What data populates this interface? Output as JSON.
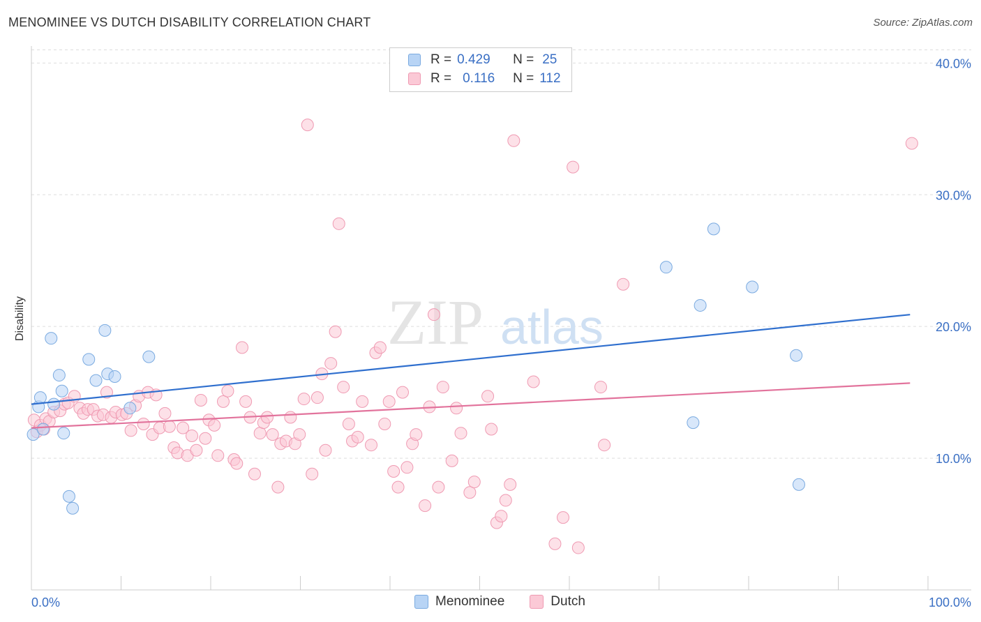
{
  "title": "MENOMINEE VS DUTCH DISABILITY CORRELATION CHART",
  "source": "Source: ZipAtlas.com",
  "watermark": {
    "zip": "ZIP",
    "atlas": "atlas"
  },
  "legend": {
    "rows": [
      {
        "r_label": "R =",
        "r_value": "0.429",
        "n_label": "N =",
        "n_value": "25",
        "color": "#b8d4f5",
        "border": "#7aaae0"
      },
      {
        "r_label": "R =",
        "r_value": "0.116",
        "n_label": "N =",
        "n_value": "112",
        "color": "#fbc9d6",
        "border": "#ef9ab2"
      }
    ]
  },
  "bottom_legend": [
    {
      "label": "Menominee",
      "color": "#b8d4f5",
      "border": "#7aaae0"
    },
    {
      "label": "Dutch",
      "color": "#fbc9d6",
      "border": "#ef9ab2"
    }
  ],
  "chart_data": {
    "type": "scatter",
    "title": "MENOMINEE VS DUTCH DISABILITY CORRELATION CHART",
    "xlabel": "",
    "ylabel": "Disability",
    "xlim": [
      0,
      100
    ],
    "ylim": [
      0,
      41.5
    ],
    "x_tick_labels": [
      "0.0%",
      "100.0%"
    ],
    "y_ticks": [
      10,
      20,
      30,
      40
    ],
    "y_tick_labels": [
      "10.0%",
      "20.0%",
      "30.0%",
      "40.0%"
    ],
    "grid": true,
    "legend_position": "top-center",
    "series": [
      {
        "name": "Menominee",
        "color": "#b8d4f5",
        "stroke": "#7aaae0",
        "line_color": "#2f6fce",
        "trend": [
          [
            0,
            14.1
          ],
          [
            98,
            20.9
          ]
        ],
        "points": [
          [
            0.2,
            11.8
          ],
          [
            0.8,
            13.9
          ],
          [
            1.0,
            14.6
          ],
          [
            1.3,
            12.2
          ],
          [
            2.2,
            19.1
          ],
          [
            2.5,
            14.1
          ],
          [
            3.1,
            16.3
          ],
          [
            3.4,
            15.1
          ],
          [
            3.6,
            11.9
          ],
          [
            4.2,
            7.1
          ],
          [
            4.6,
            6.2
          ],
          [
            6.4,
            17.5
          ],
          [
            7.2,
            15.9
          ],
          [
            8.2,
            19.7
          ],
          [
            8.5,
            16.4
          ],
          [
            9.3,
            16.2
          ],
          [
            11.0,
            13.8
          ],
          [
            13.1,
            17.7
          ],
          [
            70.8,
            24.5
          ],
          [
            74.6,
            21.6
          ],
          [
            76.1,
            27.4
          ],
          [
            73.8,
            12.7
          ],
          [
            80.4,
            23.0
          ],
          [
            85.3,
            17.8
          ],
          [
            85.6,
            8.0
          ]
        ]
      },
      {
        "name": "Dutch",
        "color": "#fbc9d6",
        "stroke": "#ef9ab2",
        "line_color": "#e2739c",
        "trend": [
          [
            0,
            12.3
          ],
          [
            98,
            15.7
          ]
        ],
        "points": [
          [
            0.3,
            12.9
          ],
          [
            0.6,
            12.0
          ],
          [
            1.0,
            12.5
          ],
          [
            1.4,
            12.2
          ],
          [
            1.6,
            13.0
          ],
          [
            2.0,
            12.8
          ],
          [
            2.5,
            13.5
          ],
          [
            3.2,
            13.6
          ],
          [
            3.7,
            14.1
          ],
          [
            4.1,
            14.2
          ],
          [
            4.8,
            14.7
          ],
          [
            5.4,
            13.8
          ],
          [
            5.8,
            13.4
          ],
          [
            6.3,
            13.7
          ],
          [
            6.9,
            13.7
          ],
          [
            7.4,
            13.2
          ],
          [
            8.0,
            13.3
          ],
          [
            8.4,
            15.0
          ],
          [
            8.9,
            13.1
          ],
          [
            9.4,
            13.5
          ],
          [
            10.1,
            13.3
          ],
          [
            10.6,
            13.4
          ],
          [
            11.1,
            12.1
          ],
          [
            11.6,
            14.0
          ],
          [
            12.0,
            14.7
          ],
          [
            12.5,
            12.6
          ],
          [
            13.0,
            15.0
          ],
          [
            13.5,
            11.8
          ],
          [
            13.9,
            14.8
          ],
          [
            14.3,
            12.3
          ],
          [
            14.9,
            13.4
          ],
          [
            15.4,
            12.4
          ],
          [
            15.9,
            10.8
          ],
          [
            16.3,
            10.4
          ],
          [
            16.9,
            12.3
          ],
          [
            17.4,
            10.2
          ],
          [
            17.9,
            11.7
          ],
          [
            18.4,
            10.6
          ],
          [
            18.9,
            14.4
          ],
          [
            19.4,
            11.5
          ],
          [
            19.8,
            12.9
          ],
          [
            20.4,
            12.5
          ],
          [
            20.8,
            10.2
          ],
          [
            21.4,
            14.3
          ],
          [
            21.9,
            15.1
          ],
          [
            22.6,
            9.9
          ],
          [
            22.9,
            9.6
          ],
          [
            23.5,
            18.4
          ],
          [
            23.9,
            14.3
          ],
          [
            24.4,
            13.1
          ],
          [
            24.9,
            8.8
          ],
          [
            25.5,
            11.9
          ],
          [
            25.9,
            12.7
          ],
          [
            26.3,
            13.1
          ],
          [
            26.9,
            11.8
          ],
          [
            27.5,
            7.8
          ],
          [
            27.8,
            11.1
          ],
          [
            28.4,
            11.3
          ],
          [
            28.9,
            13.1
          ],
          [
            29.4,
            11.1
          ],
          [
            29.9,
            11.8
          ],
          [
            30.4,
            14.5
          ],
          [
            30.8,
            35.3
          ],
          [
            31.3,
            8.8
          ],
          [
            31.9,
            14.6
          ],
          [
            32.4,
            16.4
          ],
          [
            32.8,
            10.6
          ],
          [
            33.4,
            17.2
          ],
          [
            33.9,
            19.6
          ],
          [
            34.3,
            27.8
          ],
          [
            34.8,
            15.4
          ],
          [
            35.4,
            12.6
          ],
          [
            35.8,
            11.3
          ],
          [
            36.4,
            11.6
          ],
          [
            36.9,
            14.3
          ],
          [
            37.9,
            11.0
          ],
          [
            38.4,
            18.0
          ],
          [
            38.9,
            18.4
          ],
          [
            39.4,
            12.6
          ],
          [
            39.9,
            14.3
          ],
          [
            40.4,
            9.0
          ],
          [
            40.9,
            7.8
          ],
          [
            41.4,
            15.0
          ],
          [
            41.9,
            9.3
          ],
          [
            42.5,
            11.1
          ],
          [
            42.9,
            11.8
          ],
          [
            43.9,
            6.4
          ],
          [
            44.4,
            13.9
          ],
          [
            44.9,
            20.9
          ],
          [
            45.4,
            7.8
          ],
          [
            45.9,
            15.4
          ],
          [
            46.9,
            9.8
          ],
          [
            47.4,
            13.8
          ],
          [
            47.9,
            11.9
          ],
          [
            48.9,
            7.4
          ],
          [
            49.4,
            8.2
          ],
          [
            50.9,
            14.7
          ],
          [
            51.3,
            12.2
          ],
          [
            51.9,
            5.1
          ],
          [
            52.4,
            5.6
          ],
          [
            52.9,
            6.8
          ],
          [
            53.4,
            8.0
          ],
          [
            53.8,
            34.1
          ],
          [
            56.0,
            15.8
          ],
          [
            58.4,
            3.5
          ],
          [
            59.3,
            5.5
          ],
          [
            60.4,
            32.1
          ],
          [
            61.0,
            3.2
          ],
          [
            63.5,
            15.4
          ],
          [
            63.9,
            11.0
          ],
          [
            66.0,
            23.2
          ],
          [
            98.2,
            33.9
          ]
        ]
      }
    ]
  }
}
